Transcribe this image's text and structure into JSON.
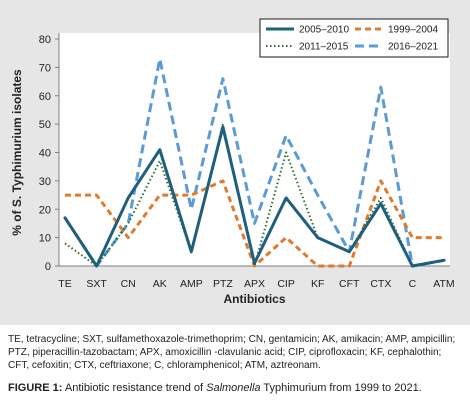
{
  "chart_data": {
    "type": "line",
    "categories": [
      "TE",
      "SXT",
      "CN",
      "AK",
      "AMP",
      "PTZ",
      "APX",
      "CIP",
      "KF",
      "CFT",
      "CTX",
      "C",
      "ATM"
    ],
    "series": [
      {
        "name": "2005–2010",
        "color": "#1f5f7e",
        "style": "solid",
        "values": [
          17,
          0,
          24,
          41,
          5,
          49,
          1,
          24,
          10,
          5,
          22,
          0,
          2
        ]
      },
      {
        "name": "1999–2004",
        "color": "#e07b2e",
        "style": "dashed",
        "values": [
          25,
          25,
          10,
          25,
          25,
          30,
          0,
          10,
          0,
          0,
          30,
          10,
          10
        ]
      },
      {
        "name": "2011–2015",
        "color": "#2e6b2e",
        "style": "dotted",
        "values": [
          8,
          0,
          15,
          37,
          5,
          50,
          0,
          40,
          10,
          5,
          24,
          0,
          2
        ]
      },
      {
        "name": "2016–2021",
        "color": "#5b9bd5",
        "style": "longdash",
        "values": [
          17,
          0,
          15,
          73,
          20,
          66,
          15,
          46,
          25,
          5,
          63,
          0,
          2
        ]
      }
    ],
    "xlabel": "Antibiotics",
    "ylabel": "% of S. Typhimurium isolates",
    "ylim": [
      0,
      80
    ],
    "yticks": [
      0,
      10,
      20,
      30,
      40,
      50,
      60,
      70,
      80
    ],
    "grid": false,
    "legend": "top-right"
  },
  "footnote": "TE, tetracycline; SXT, sulfamethoxazole-trimethoprim; CN, gentamicin; AK, amikacin; AMP, ampicillin; PTZ, piperacillin-tazobactam; APX, amoxicillin -clavulanic acid; CIP, ciprofloxacin; KF, cephalothin; CFT, cefoxitin; CTX, ceftriaxone; C, chloramphenicol; ATM, aztreonam.",
  "caption": {
    "label": "FIGURE 1:",
    "text_before": "Antibiotic resistance trend of",
    "italic": "Salmonella",
    "text_after": "Typhimurium from 1999 to 2021."
  }
}
